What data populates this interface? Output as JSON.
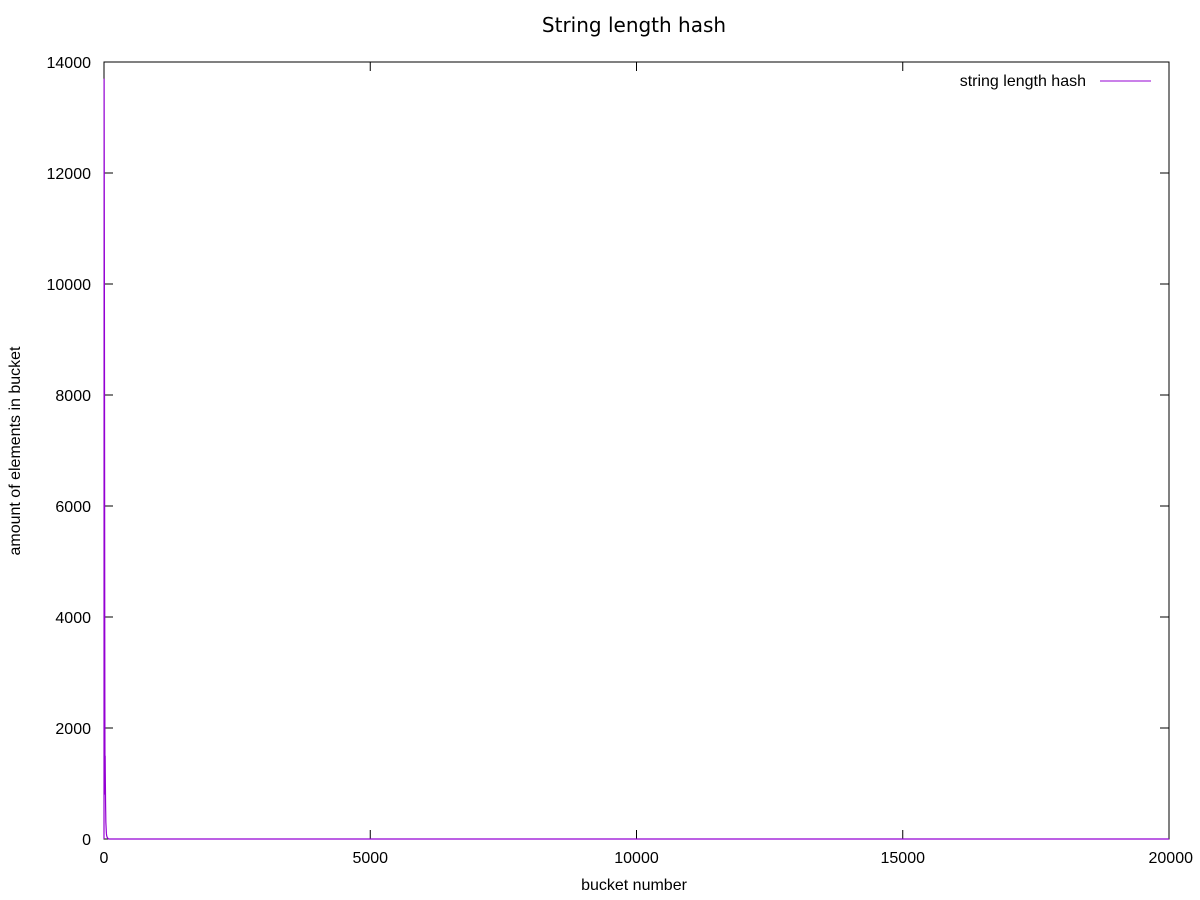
{
  "chart_data": {
    "type": "line",
    "title": "String length hash",
    "xlabel": "bucket number",
    "ylabel": "amount of elements in bucket",
    "xlim": [
      0,
      20000
    ],
    "ylim": [
      0,
      14000
    ],
    "x_ticks": [
      "0",
      "5000",
      "10000",
      "15000",
      "20000"
    ],
    "y_ticks": [
      "0",
      "2000",
      "4000",
      "6000",
      "8000",
      "10000",
      "12000",
      "14000"
    ],
    "grid": false,
    "legend_position": "top-right",
    "series": [
      {
        "name": "string length hash",
        "color": "#9400d3",
        "x": [
          0,
          2,
          4,
          6,
          8,
          10,
          12,
          14,
          16,
          18,
          20,
          22,
          24,
          26,
          28,
          30,
          32,
          35,
          40,
          45,
          50,
          60,
          70,
          80,
          100,
          150,
          200,
          20000
        ],
        "y": [
          0,
          13700,
          12500,
          11000,
          9500,
          8000,
          6000,
          4000,
          2500,
          1500,
          800,
          1500,
          1200,
          1000,
          800,
          600,
          500,
          300,
          200,
          100,
          60,
          30,
          15,
          5,
          0,
          0,
          0,
          0
        ]
      }
    ]
  }
}
